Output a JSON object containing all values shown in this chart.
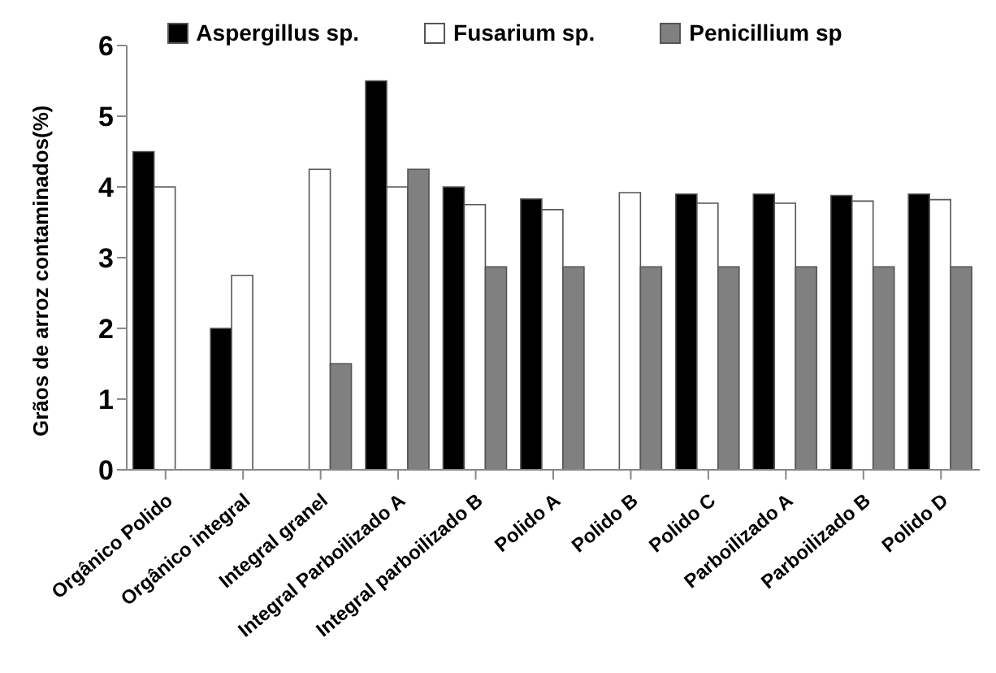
{
  "chart_data": {
    "type": "bar",
    "ylabel": "Grãos de arroz contaminados(%)",
    "categories": [
      "Orgânico Polido",
      "Orgânico integral",
      "Integral granel",
      "Integral Parboilizado A",
      "Integral parboilizado B",
      "Polido A",
      "Polido B",
      "Polido C",
      "Parboilizado A",
      "Parboilizado B",
      "Polido D"
    ],
    "series": [
      {
        "name": "Aspergillus sp.",
        "color": "#000000",
        "values": [
          4.5,
          2,
          null,
          5.5,
          4,
          3.83,
          null,
          3.9,
          3.9,
          3.88,
          3.9
        ]
      },
      {
        "name": "Fusarium sp.",
        "color": "#ffffff",
        "values": [
          4,
          2.75,
          4.25,
          4,
          3.75,
          3.68,
          3.92,
          3.77,
          3.77,
          3.8,
          3.82
        ]
      },
      {
        "name": "Penicillium sp",
        "color": "#808080",
        "values": [
          null,
          null,
          1.5,
          4.25,
          2.87,
          2.87,
          2.87,
          2.87,
          2.87,
          2.87,
          2.87
        ]
      }
    ],
    "ylim": [
      0,
      6
    ],
    "yticks": [
      0,
      1,
      2,
      3,
      4,
      5,
      6
    ],
    "grid": false,
    "legend": "top"
  }
}
